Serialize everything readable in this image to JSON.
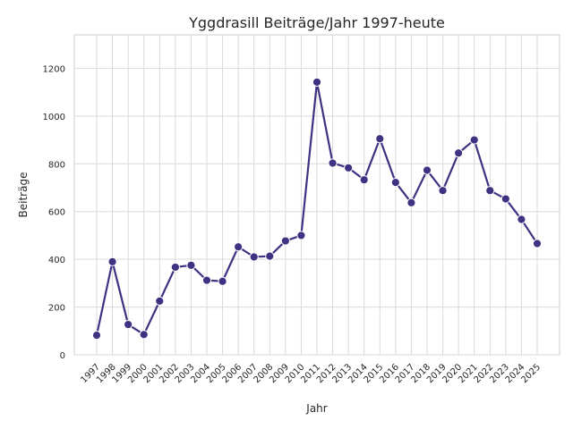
{
  "chart_data": {
    "type": "line",
    "title": "Yggdrasill Beiträge/Jahr 1997-heute",
    "xlabel": "Jahr",
    "ylabel": "Beiträge",
    "grid": true,
    "ylim": [
      0,
      1340
    ],
    "yticks": [
      0,
      200,
      400,
      600,
      800,
      1000,
      1200
    ],
    "categories": [
      "1997",
      "1998",
      "1999",
      "2000",
      "2001",
      "2002",
      "2003",
      "2004",
      "2005",
      "2006",
      "2007",
      "2008",
      "2009",
      "2010",
      "2011",
      "2012",
      "2013",
      "2014",
      "2015",
      "2016",
      "2017",
      "2018",
      "2019",
      "2020",
      "2021",
      "2022",
      "2023",
      "2024",
      "2025"
    ],
    "series": [
      {
        "values": [
          82,
          390,
          127,
          85,
          225,
          367,
          375,
          312,
          308,
          452,
          410,
          413,
          477,
          500,
          1142,
          803,
          783,
          733,
          905,
          722,
          637,
          773,
          688,
          845,
          900,
          688,
          653,
          567,
          466
        ],
        "color": "#3f3282"
      }
    ]
  }
}
